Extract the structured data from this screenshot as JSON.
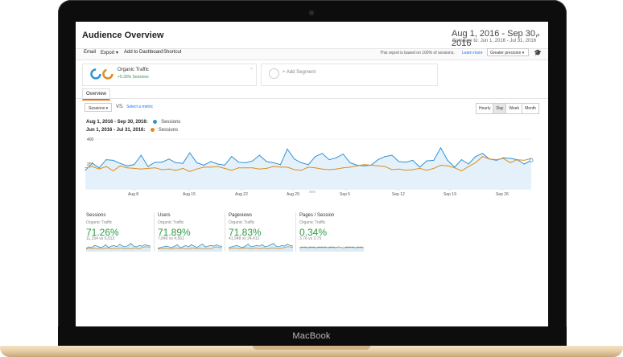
{
  "device": {
    "brand": "MacBook"
  },
  "header": {
    "title": "Audience Overview",
    "date_range": "Aug 1, 2016 - Sep 30, 2016",
    "compare_label": "Compare to:",
    "compare_range": "Jun 1, 2016 - Jul 31, 2016"
  },
  "toolbar": {
    "email": "Email",
    "export": "Export",
    "add_to_dashboard": "Add to Dashboard",
    "shortcut": "Shortcut",
    "sampling_note": "This report is based on 100% of sessions.",
    "learn_more": "Learn more",
    "precision": "Greater precision"
  },
  "segments": {
    "active": {
      "name": "Organic Traffic",
      "delta": "+5.30% Sessions"
    },
    "add": "+ Add Segment"
  },
  "tabs": {
    "overview": "Overview"
  },
  "chart_controls": {
    "metric": "Sessions",
    "vs": "VS.",
    "select_metric": "Select a metric",
    "granularity": [
      "Hourly",
      "Day",
      "Week",
      "Month"
    ],
    "active_granularity": "Day"
  },
  "chart_legend": [
    {
      "range": "Aug 1, 2016 - Sep 30, 2016:",
      "metric": "Sessions",
      "color": "#2f93d3"
    },
    {
      "range": "Jun 1, 2016 - Jul 31, 2016:",
      "metric": "Sessions",
      "color": "#e08c1a"
    }
  ],
  "chart_data": {
    "type": "line",
    "ytick_labels": [
      "400",
      "200"
    ],
    "ylim": [
      0,
      400
    ],
    "xtick_labels": [
      "Aug 8",
      "Aug 15",
      "Aug 22",
      "Aug 29",
      "Sep 5",
      "Sep 12",
      "Sep 19",
      "Sep 26"
    ],
    "grid": true,
    "series": [
      {
        "name": "Aug 1, 2016 - Sep 30, 2016",
        "color": "#2f93d3",
        "area": true,
        "values": [
          150,
          205,
          170,
          235,
          230,
          205,
          185,
          195,
          270,
          180,
          215,
          215,
          240,
          210,
          205,
          290,
          210,
          190,
          220,
          200,
          190,
          260,
          215,
          210,
          225,
          270,
          220,
          210,
          195,
          320,
          240,
          210,
          195,
          260,
          285,
          235,
          250,
          280,
          210,
          190,
          185,
          190,
          235,
          260,
          270,
          220,
          215,
          230,
          175,
          225,
          230,
          330,
          230,
          175,
          235,
          200,
          260,
          285,
          240,
          230,
          250,
          245,
          235,
          200,
          230
        ]
      },
      {
        "name": "Jun 1, 2016 - Jul 31, 2016",
        "color": "#e08c1a",
        "area": false,
        "values": [
          170,
          180,
          160,
          180,
          145,
          185,
          170,
          165,
          160,
          165,
          170,
          155,
          160,
          150,
          165,
          140,
          160,
          175,
          175,
          180,
          165,
          150,
          170,
          170,
          170,
          160,
          165,
          180,
          175,
          175,
          155,
          150,
          175,
          170,
          160,
          155,
          160,
          170,
          175,
          185,
          195,
          190,
          185,
          180,
          155,
          160,
          150,
          155,
          165,
          150,
          165,
          190,
          185,
          170,
          145,
          180,
          210,
          260,
          240,
          235,
          245,
          210,
          235,
          230,
          245
        ]
      }
    ]
  },
  "summary": [
    {
      "metric": "Sessions",
      "segment": "Organic Traffic",
      "percent": "71.26%",
      "comparison": "11,154 vs 6,513",
      "spark_a": [
        5,
        7,
        6,
        9,
        8,
        6,
        7,
        10,
        6,
        8,
        9,
        7,
        11,
        8,
        7,
        9,
        12,
        8,
        7,
        9,
        8,
        10,
        9,
        8
      ],
      "spark_b": [
        4,
        5,
        4,
        5,
        4,
        5,
        4,
        5,
        5,
        4,
        5,
        4,
        5,
        5,
        4,
        5,
        4,
        5,
        5,
        4,
        6,
        7,
        7,
        6
      ]
    },
    {
      "metric": "Users",
      "segment": "Organic Traffic",
      "percent": "71.89%",
      "comparison": "7,840 vs 4,561",
      "spark_a": [
        5,
        6,
        7,
        8,
        7,
        6,
        8,
        10,
        6,
        7,
        9,
        7,
        10,
        8,
        6,
        9,
        11,
        7,
        8,
        9,
        8,
        10,
        8,
        8
      ],
      "spark_b": [
        4,
        5,
        4,
        5,
        4,
        4,
        5,
        5,
        4,
        5,
        4,
        4,
        5,
        5,
        4,
        5,
        4,
        5,
        4,
        4,
        6,
        7,
        6,
        6
      ]
    },
    {
      "metric": "Pageviews",
      "segment": "Organic Traffic",
      "percent": "71.83%",
      "comparison": "41,948 vs 24,412",
      "spark_a": [
        6,
        7,
        8,
        9,
        7,
        6,
        8,
        11,
        7,
        8,
        9,
        8,
        10,
        7,
        8,
        10,
        12,
        8,
        7,
        9,
        8,
        11,
        9,
        8
      ],
      "spark_b": [
        4,
        5,
        5,
        5,
        4,
        5,
        5,
        5,
        4,
        5,
        5,
        4,
        5,
        5,
        4,
        5,
        5,
        5,
        4,
        5,
        6,
        7,
        7,
        6
      ]
    },
    {
      "metric": "Pages / Session",
      "segment": "Organic Traffic",
      "percent": "0.34%",
      "comparison": "3.76 vs 3.75",
      "spark_a": [
        6,
        6,
        7,
        6,
        7,
        6,
        6,
        7,
        6,
        7,
        6,
        6,
        7,
        6,
        7,
        6,
        6,
        7,
        6,
        7,
        6,
        6,
        7,
        6
      ],
      "spark_b": [
        6,
        7,
        6,
        6,
        6,
        7,
        6,
        6,
        7,
        6,
        6,
        7,
        6,
        6,
        7,
        6,
        6,
        6,
        7,
        6,
        6,
        7,
        6,
        6
      ]
    }
  ]
}
